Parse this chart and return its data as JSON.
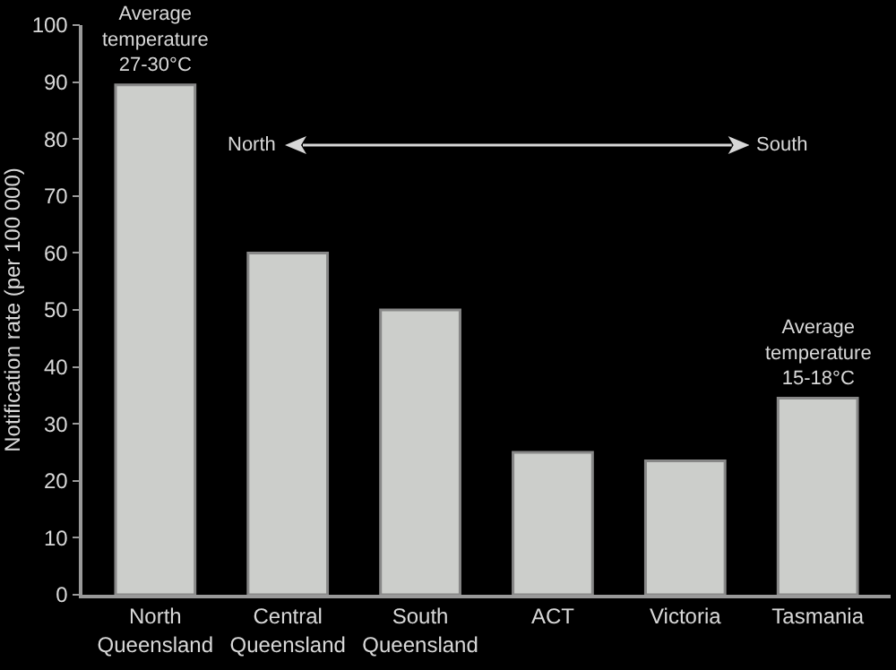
{
  "chart_data": {
    "type": "bar",
    "ylabel": "Notification rate (per 100 000)",
    "categories": [
      "North Queensland",
      "Central Queensland",
      "South Queensland",
      "ACT",
      "Victoria",
      "Tasmania"
    ],
    "values": [
      89.5,
      60,
      50,
      25,
      23.5,
      34.5
    ],
    "color": "#cccecb",
    "ylim": [
      0,
      100
    ],
    "yticks": [
      0,
      10,
      20,
      30,
      40,
      50,
      60,
      70,
      80,
      90,
      100
    ],
    "grid": false,
    "annotations": [
      {
        "text": "Average temperature 27-30°C",
        "x": "North Queensland",
        "y": 89.5
      },
      {
        "text": "Average temperature 15-18°C",
        "x": "Tasmania",
        "y": 34.5
      },
      "North",
      "South"
    ]
  }
}
